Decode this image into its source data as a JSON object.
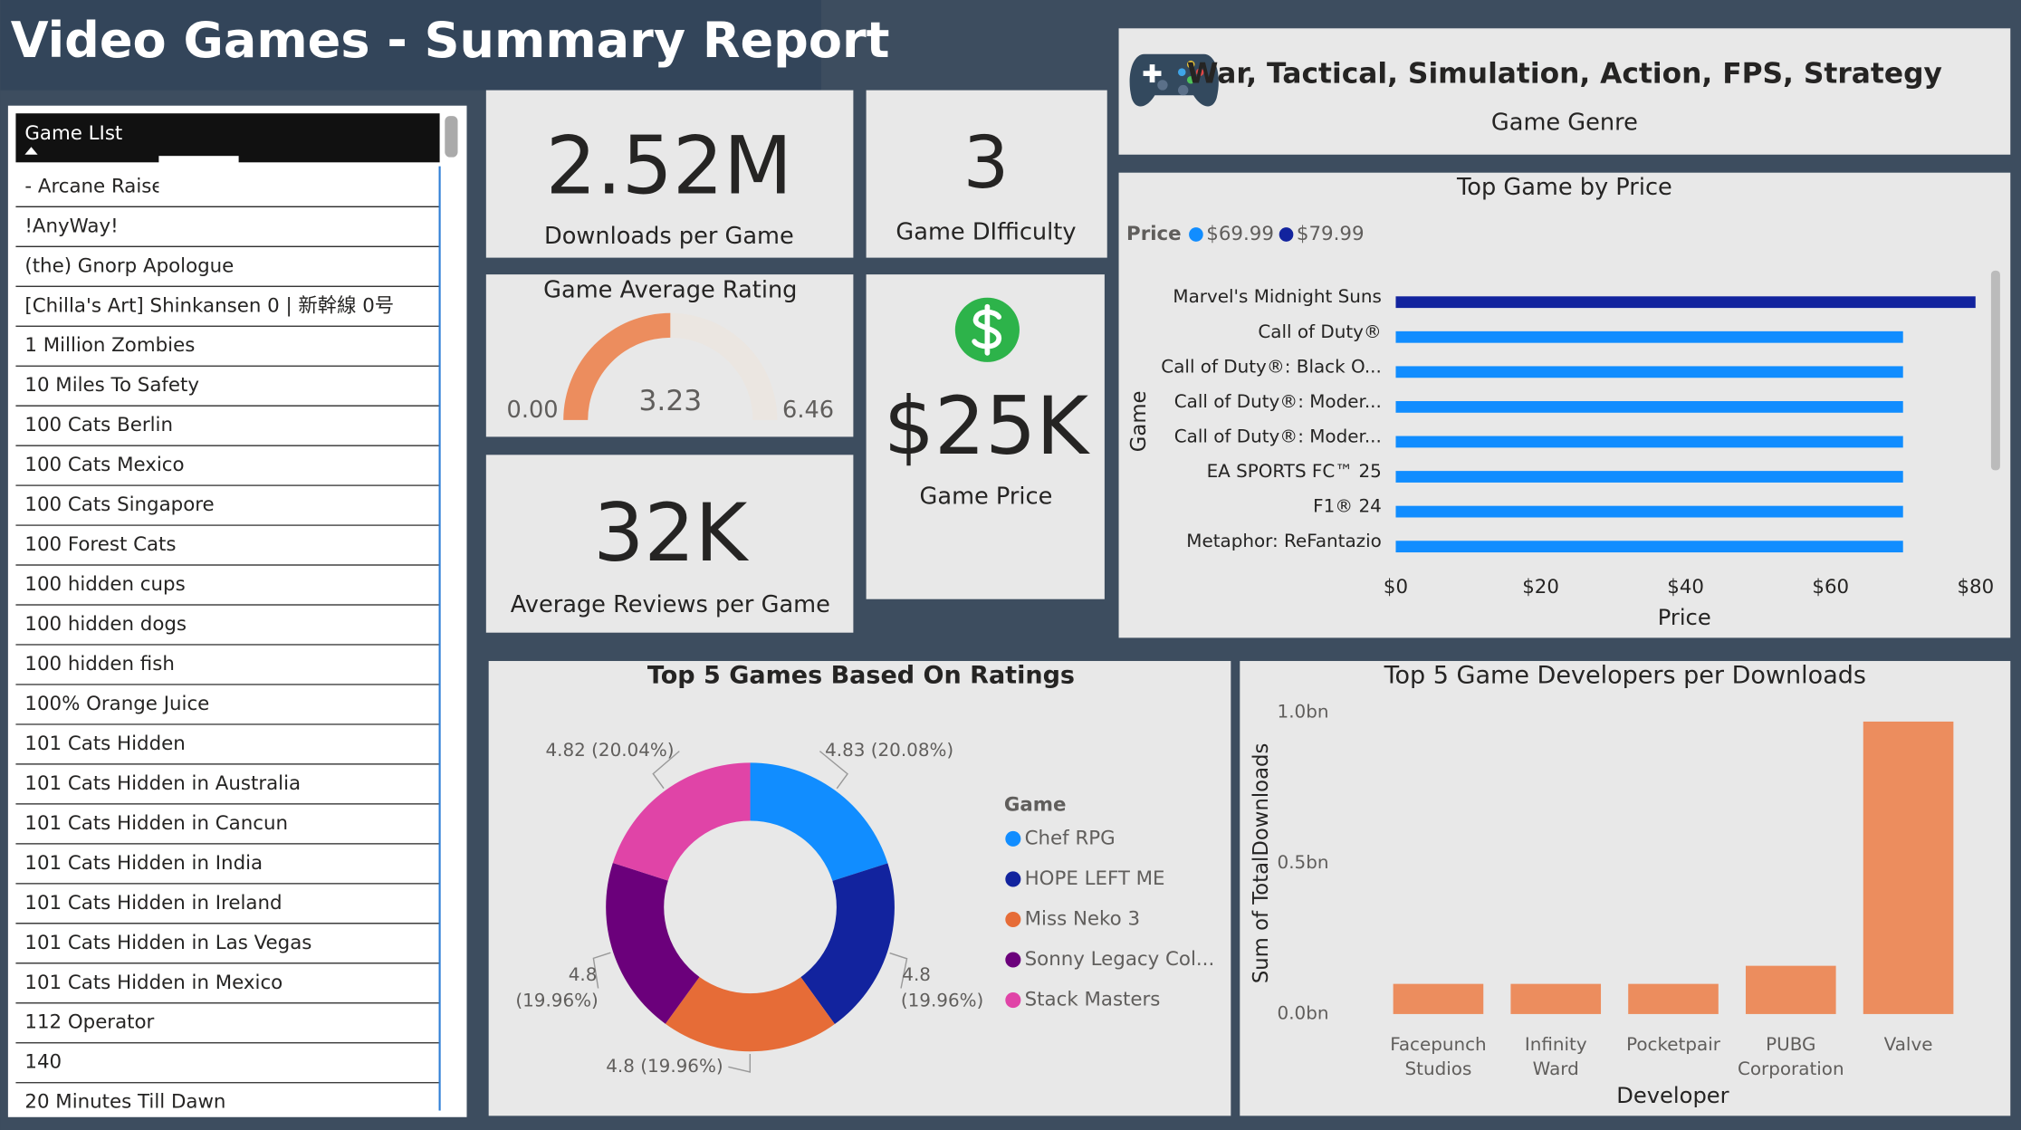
{
  "header": {
    "title": "Video Games - Summary Report"
  },
  "game_list": {
    "header": "Game LIst",
    "items": [
      "- Arcane Raise",
      "!AnyWay!",
      "(the) Gnorp Apologue",
      "[Chilla's Art] Shinkansen 0 | 新幹線 0号",
      "1 Million Zombies",
      "10 Miles To Safety",
      "100 Cats Berlin",
      "100 Cats Mexico",
      "100 Cats Singapore",
      "100 Forest Cats",
      "100 hidden cups",
      "100 hidden dogs",
      "100 hidden fish",
      "100% Orange Juice",
      "101 Cats Hidden",
      "101 Cats Hidden in Australia",
      "101 Cats Hidden in Cancun",
      "101 Cats Hidden in India",
      "101 Cats Hidden in Ireland",
      "101 Cats Hidden in Las Vegas",
      "101 Cats Hidden in Mexico",
      "112 Operator",
      "140",
      "20 Minutes Till Dawn"
    ]
  },
  "cards": {
    "downloads": {
      "value": "2.52M",
      "label": "Downloads per Game"
    },
    "difficulty": {
      "value": "3",
      "label": "Game DIfficulty"
    },
    "reviews": {
      "value": "32K",
      "label": "Average Reviews per Game"
    },
    "price": {
      "value": "$25K",
      "label": "Game Price"
    },
    "genre": {
      "value": "War, Tactical, Simulation, Action, FPS, Strategy",
      "label": "Game Genre"
    }
  },
  "chart_data": [
    {
      "type": "gauge",
      "title": "Game Average Rating",
      "values": [
        3.23
      ],
      "ylim": [
        0,
        6.46
      ],
      "yticks": [
        {
          "value": 0,
          "label": "0.00"
        },
        6.46
      ],
      "color": "#ec8d5e",
      "track_color": "#ebe6e1"
    },
    {
      "type": "hbar",
      "title": "Top Game by Price",
      "legend_title": "Price",
      "legend": [
        {
          "name": "$69.99",
          "color": "#118dff"
        },
        {
          "name": "$79.99",
          "color": "#12239e"
        }
      ],
      "categories": [
        "Marvel's Midnight Suns",
        "Call of Duty®",
        "Call of Duty®: Black O...",
        "Call of Duty®: Moder...",
        "Call of Duty®: Moder...",
        "EA SPORTS FC™ 25",
        "F1® 24",
        "Metaphor: ReFantazio"
      ],
      "values": [
        79.99,
        69.99,
        69.99,
        69.99,
        69.99,
        69.99,
        69.99,
        69.99
      ],
      "colors": [
        "#12239e",
        "#118dff",
        "#118dff",
        "#118dff",
        "#118dff",
        "#118dff",
        "#118dff",
        "#118dff"
      ],
      "xlim": [
        0,
        80
      ],
      "xticks": [
        {
          "value": 0,
          "label": "$0"
        },
        {
          "value": 20,
          "label": "$20"
        },
        {
          "value": 40,
          "label": "$40"
        },
        {
          "value": 60,
          "label": "$60"
        },
        {
          "value": 80,
          "label": "$80"
        }
      ],
      "xlabel": "Price",
      "ylabel": "Game"
    },
    {
      "type": "donut",
      "title": "Top 5 Games Based On Ratings",
      "legend_title": "Game",
      "categories": [
        "Chef RPG",
        "HOPE LEFT ME",
        "Miss Neko 3",
        "Sonny Legacy Col...",
        "Stack Masters"
      ],
      "values": [
        4.83,
        4.8,
        4.8,
        4.8,
        4.82
      ],
      "value_labels": [
        "4.83 (20.08%)",
        "4.8 (19.96%)",
        "4.8 (19.96%)",
        "4.8 (19.96%)",
        "4.82 (20.04%)"
      ],
      "colors": [
        "#118dff",
        "#12239e",
        "#e66c37",
        "#6b007b",
        "#e044a7"
      ]
    },
    {
      "type": "column",
      "title": "Top 5 Game Developers per Downloads",
      "categories": [
        "Facepunch Studios",
        "Infinity Ward",
        "Pocketpair",
        "PUBG Corporation",
        "Valve"
      ],
      "values": [
        0.1,
        0.1,
        0.1,
        0.16,
        0.97
      ],
      "color": "#ec8d5e",
      "ylim": [
        0,
        1.0
      ],
      "yticks": [
        {
          "value": 0,
          "label": "0.0bn"
        },
        {
          "value": 0.5,
          "label": "0.5bn"
        },
        {
          "value": 1.0,
          "label": "1.0bn"
        }
      ],
      "xlabel": "Developer",
      "ylabel": "Sum of TotalDownloads"
    }
  ]
}
